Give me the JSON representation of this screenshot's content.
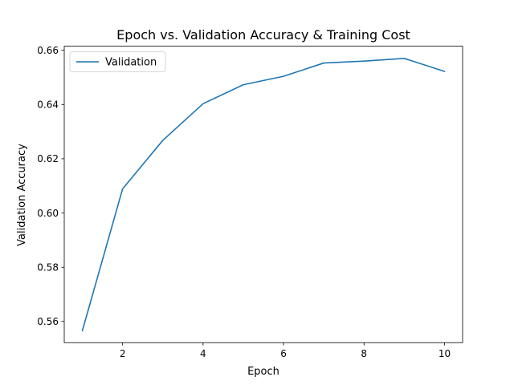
{
  "chart_data": {
    "type": "line",
    "title": "Epoch vs. Validation Accuracy & Training Cost",
    "xlabel": "Epoch",
    "ylabel": "Validation Accuracy",
    "xlim": [
      0.55,
      10.45
    ],
    "ylim": [
      0.5522,
      0.6615
    ],
    "x_ticks": [
      2,
      4,
      6,
      8,
      10
    ],
    "y_ticks": [
      0.56,
      0.58,
      0.6,
      0.62,
      0.64,
      0.66
    ],
    "grid": false,
    "legend_position": "upper-left",
    "series": [
      {
        "name": "Validation",
        "color": "#1f77b4",
        "x": [
          1,
          2,
          3,
          4,
          5,
          6,
          7,
          8,
          9,
          10
        ],
        "values": [
          0.5566,
          0.6089,
          0.6268,
          0.6403,
          0.6473,
          0.6504,
          0.6553,
          0.656,
          0.657,
          0.6522
        ]
      }
    ]
  }
}
